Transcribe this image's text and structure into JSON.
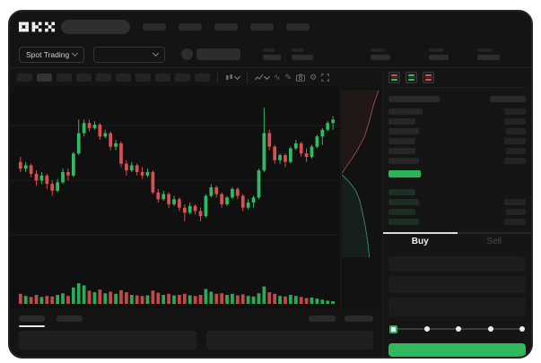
{
  "brand": {
    "logo": "okx-logo"
  },
  "nav": {
    "loading_items": 5
  },
  "market_selector": {
    "spot_trading_label": "Spot Trading"
  },
  "toolbar": {
    "timeframe_slots": 10,
    "active_timeframe_index": 1,
    "icon_glyphs": {
      "wave": "∿",
      "pencil": "✎",
      "gear": "⚙"
    }
  },
  "orderbook": {
    "view_icons": [
      "book-asks-bids",
      "book-bids-only",
      "book-asks-only"
    ],
    "asks": [
      {
        "pw": 38,
        "aw": 24
      },
      {
        "pw": 30,
        "aw": 24
      },
      {
        "pw": 34,
        "aw": 22
      },
      {
        "pw": 30,
        "aw": 24
      },
      {
        "pw": 30,
        "aw": 22
      },
      {
        "pw": 34,
        "aw": 24
      }
    ],
    "bids": [
      {
        "pw": 30,
        "aw": 0
      },
      {
        "pw": 34,
        "aw": 24
      },
      {
        "pw": 30,
        "aw": 22
      },
      {
        "pw": 34,
        "aw": 24
      }
    ],
    "header": {
      "left_w": 57,
      "right_w": 40
    },
    "last_price_highlight": "green"
  },
  "trade_panel": {
    "tabs": {
      "buy": "Buy",
      "sell": "Sell"
    },
    "active_tab": "Buy",
    "amount_slider": {
      "steps": 5,
      "active_step": 0
    }
  },
  "colors": {
    "up_green": "#2FBB63",
    "down_red": "#DB4F4F",
    "last_price_green": "#2BB457",
    "buy_button_green": "#2EB95C",
    "depth_ask_line": "#A85555",
    "depth_bid_line": "#3F9A6E",
    "gridline": "#1d1d1d"
  },
  "chart_data": {
    "type": "candlestick",
    "title": "",
    "candles": [
      [
        63,
        66,
        57,
        59
      ],
      [
        59,
        63,
        57,
        61
      ],
      [
        61,
        62,
        54,
        56
      ],
      [
        56,
        58,
        49,
        52
      ],
      [
        52,
        57,
        50,
        55
      ],
      [
        55,
        56,
        47,
        50
      ],
      [
        50,
        52,
        43,
        46
      ],
      [
        46,
        53,
        45,
        51
      ],
      [
        51,
        59,
        50,
        57
      ],
      [
        57,
        59,
        52,
        55
      ],
      [
        55,
        69,
        54,
        68
      ],
      [
        68,
        88,
        67,
        80
      ],
      [
        80,
        88,
        78,
        86
      ],
      [
        86,
        88,
        81,
        83
      ],
      [
        83,
        87,
        82,
        85
      ],
      [
        85,
        86,
        76,
        78
      ],
      [
        78,
        82,
        77,
        80
      ],
      [
        80,
        81,
        70,
        72
      ],
      [
        72,
        76,
        70,
        74
      ],
      [
        74,
        75,
        60,
        62
      ],
      [
        62,
        64,
        55,
        58
      ],
      [
        58,
        63,
        57,
        61
      ],
      [
        61,
        62,
        55,
        57
      ],
      [
        57,
        60,
        53,
        55
      ],
      [
        55,
        59,
        54,
        57
      ],
      [
        57,
        58,
        44,
        45
      ],
      [
        45,
        47,
        39,
        41
      ],
      [
        41,
        46,
        40,
        44
      ],
      [
        44,
        45,
        36,
        38
      ],
      [
        38,
        43,
        37,
        41
      ],
      [
        41,
        42,
        34,
        36
      ],
      [
        36,
        38,
        28,
        33
      ],
      [
        33,
        39,
        32,
        37
      ],
      [
        37,
        38,
        32,
        34
      ],
      [
        34,
        36,
        28,
        31
      ],
      [
        31,
        44,
        30,
        43
      ],
      [
        43,
        50,
        42,
        48
      ],
      [
        48,
        49,
        42,
        44
      ],
      [
        44,
        45,
        36,
        38
      ],
      [
        38,
        43,
        37,
        42
      ],
      [
        42,
        48,
        41,
        47
      ],
      [
        47,
        48,
        41,
        43
      ],
      [
        43,
        44,
        34,
        36
      ],
      [
        36,
        41,
        35,
        39
      ],
      [
        39,
        43,
        36,
        42
      ],
      [
        42,
        59,
        41,
        58
      ],
      [
        58,
        95,
        57,
        80
      ],
      [
        80,
        82,
        70,
        72
      ],
      [
        72,
        73,
        62,
        64
      ],
      [
        64,
        68,
        62,
        67
      ],
      [
        67,
        68,
        60,
        63
      ],
      [
        63,
        72,
        62,
        71
      ],
      [
        71,
        76,
        70,
        74
      ],
      [
        74,
        75,
        66,
        68
      ],
      [
        68,
        71,
        63,
        66
      ],
      [
        66,
        73,
        65,
        72
      ],
      [
        72,
        79,
        71,
        78
      ],
      [
        78,
        83,
        73,
        82
      ],
      [
        82,
        87,
        81,
        86
      ],
      [
        86,
        90,
        82,
        88
      ]
    ],
    "volumes": [
      38,
      30,
      26,
      34,
      26,
      30,
      28,
      34,
      40,
      30,
      62,
      78,
      70,
      50,
      44,
      54,
      40,
      46,
      38,
      52,
      44,
      34,
      32,
      30,
      32,
      50,
      42,
      34,
      38,
      32,
      34,
      38,
      32,
      30,
      34,
      56,
      46,
      38,
      40,
      34,
      38,
      32,
      36,
      30,
      28,
      40,
      66,
      44,
      38,
      30,
      28,
      34,
      30,
      26,
      22,
      24,
      20,
      16,
      12,
      10
    ],
    "depth": {
      "asks": [
        [
          0.95,
          0.01
        ],
        [
          0.82,
          0.1
        ],
        [
          0.72,
          0.19
        ],
        [
          0.6,
          0.28
        ],
        [
          0.42,
          0.36
        ],
        [
          0.25,
          0.42
        ],
        [
          0.1,
          0.47
        ],
        [
          0.03,
          0.495
        ]
      ],
      "bids": [
        [
          0.03,
          0.505
        ],
        [
          0.22,
          0.55
        ],
        [
          0.38,
          0.6
        ],
        [
          0.48,
          0.66
        ],
        [
          0.55,
          0.73
        ],
        [
          0.62,
          0.81
        ],
        [
          0.68,
          0.9
        ],
        [
          0.72,
          0.99
        ]
      ]
    },
    "axis_labels_visible": false
  }
}
